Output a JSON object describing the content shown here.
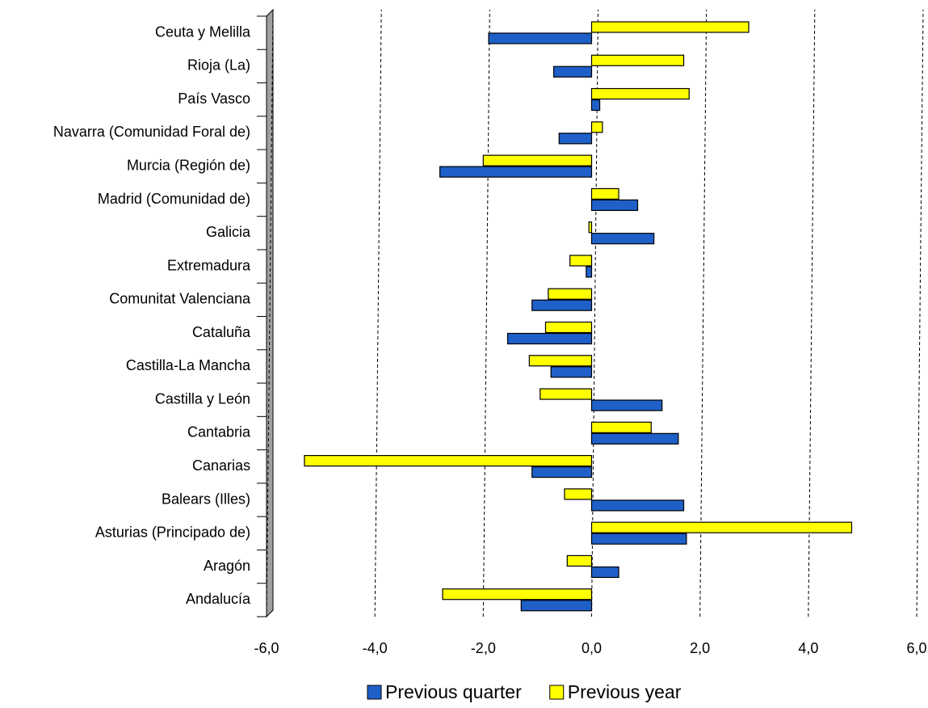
{
  "chart_data": {
    "type": "bar",
    "orientation": "horizontal",
    "categories": [
      "Ceuta y Melilla",
      "Rioja (La)",
      "País Vasco",
      "Navarra (Comunidad Foral de)",
      "Murcia (Región de)",
      "Madrid (Comunidad de)",
      "Galicia",
      "Extremadura",
      "Comunitat Valenciana",
      "Cataluña",
      "Castilla-La Mancha",
      "Castilla y León",
      "Cantabria",
      "Canarias",
      "Balears (Illes)",
      "Asturias (Principado de)",
      "Aragón",
      "Andalucía"
    ],
    "series": [
      {
        "name": "Previous quarter",
        "color": "#1f5fc8",
        "values": [
          -1.9,
          -0.7,
          0.15,
          -0.6,
          -2.8,
          0.85,
          1.15,
          -0.1,
          -1.1,
          -1.55,
          -0.75,
          1.3,
          1.6,
          -1.1,
          1.7,
          1.75,
          0.5,
          -1.3
        ]
      },
      {
        "name": "Previous year",
        "color": "#ffff00",
        "values": [
          2.9,
          1.7,
          1.8,
          0.2,
          -2.0,
          0.5,
          -0.05,
          -0.4,
          -0.8,
          -0.85,
          -1.15,
          -0.95,
          1.1,
          -5.3,
          -0.5,
          4.8,
          -0.45,
          -2.75
        ]
      }
    ],
    "xlim": [
      -6,
      6
    ],
    "xticks": [
      {
        "value": -6,
        "label": "-6,0"
      },
      {
        "value": -4,
        "label": "-4,0"
      },
      {
        "value": -2,
        "label": "-2,0"
      },
      {
        "value": 0,
        "label": "0,0"
      },
      {
        "value": 2,
        "label": "2,0"
      },
      {
        "value": 4,
        "label": "4,0"
      },
      {
        "value": 6,
        "label": "6,0"
      }
    ],
    "grid": true,
    "legend": "bottom"
  }
}
